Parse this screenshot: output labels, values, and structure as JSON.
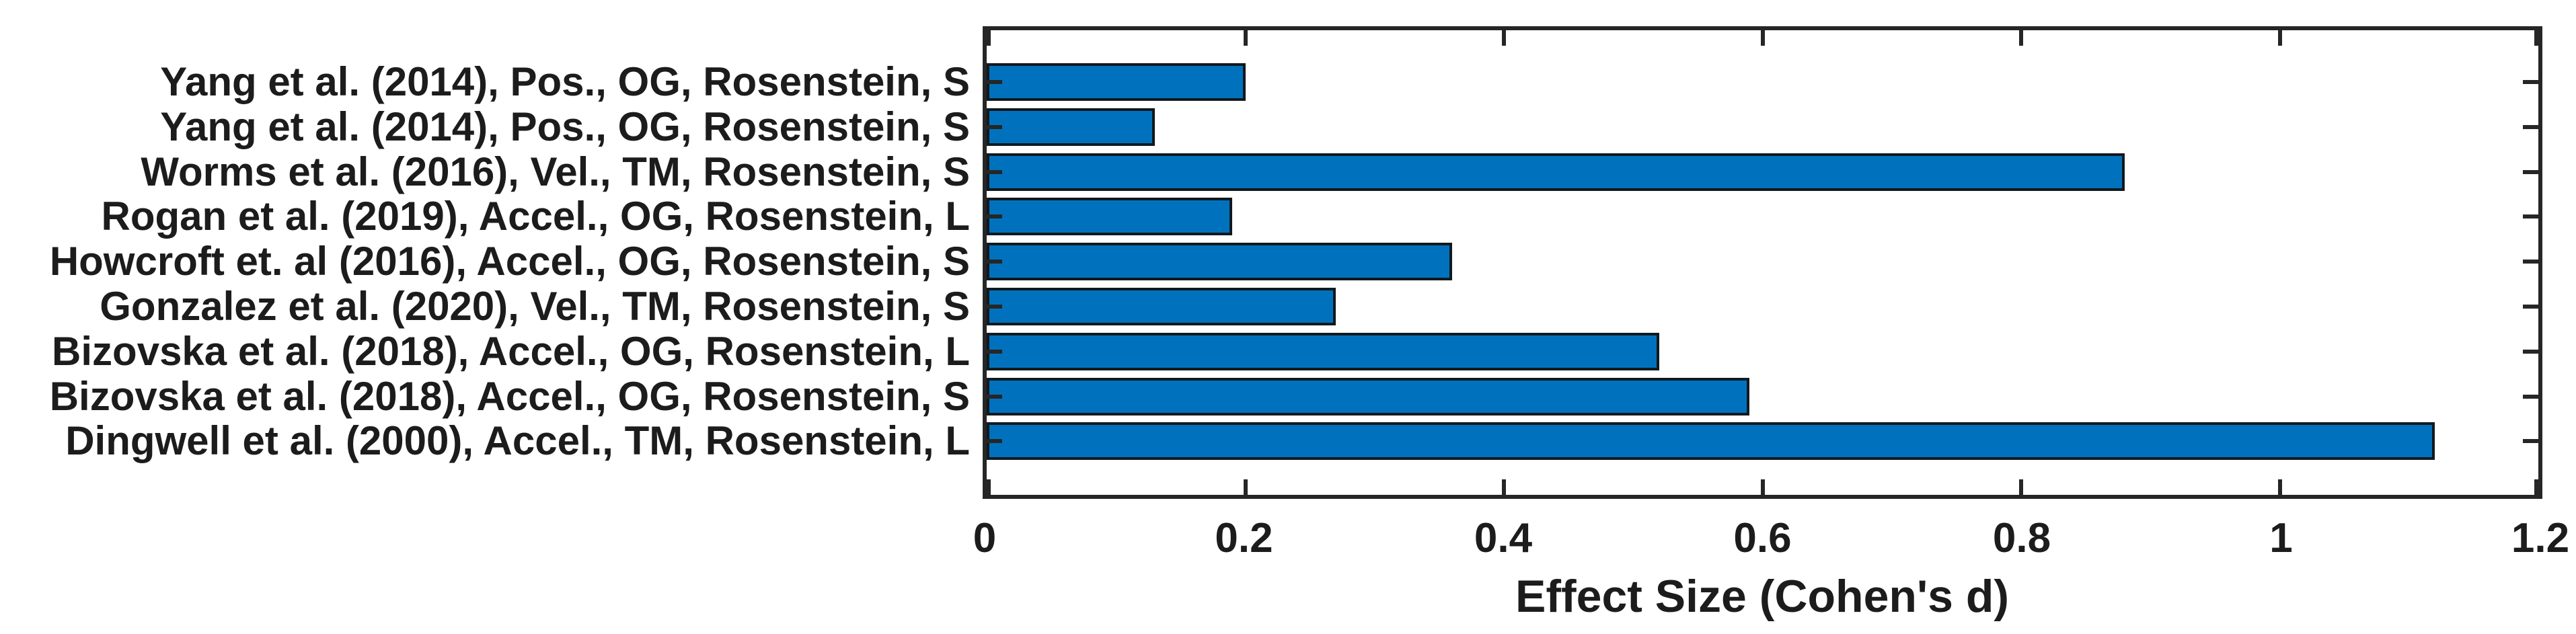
{
  "chart_data": {
    "type": "bar",
    "orientation": "horizontal",
    "title": "",
    "xlabel": "Effect Size (Cohen's d)",
    "ylabel": "",
    "xlim": [
      0,
      1.2
    ],
    "x_ticks": [
      0,
      0.2,
      0.4,
      0.6,
      0.8,
      1,
      1.2
    ],
    "x_tick_labels": [
      "0",
      "0.2",
      "0.4",
      "0.6",
      "0.8",
      "1",
      "1.2"
    ],
    "categories": [
      "Yang et al. (2014), Pos., OG, Rosenstein, S",
      "Yang et al. (2014), Pos., OG, Rosenstein, S",
      "Worms et al. (2016), Vel., TM, Rosenstein, S",
      "Rogan et al. (2019), Accel., OG, Rosenstein, L",
      "Howcroft et. al (2016), Accel., OG, Rosenstein, S",
      "Gonzalez et al. (2020), Vel., TM, Rosenstein, S",
      "Bizovska et al. (2018), Accel., OG, Rosenstein, L",
      "Bizovska et al. (2018), Accel., OG, Rosenstein, S",
      "Dingwell et al. (2000), Accel., TM, Rosenstein, L"
    ],
    "values": [
      0.2,
      0.13,
      0.88,
      0.19,
      0.36,
      0.27,
      0.52,
      0.59,
      1.12
    ],
    "bar_color": "#0072BD",
    "bar_edge_color": "#10191f",
    "axis_color": "#262626",
    "grid": "off",
    "legend": "none"
  }
}
